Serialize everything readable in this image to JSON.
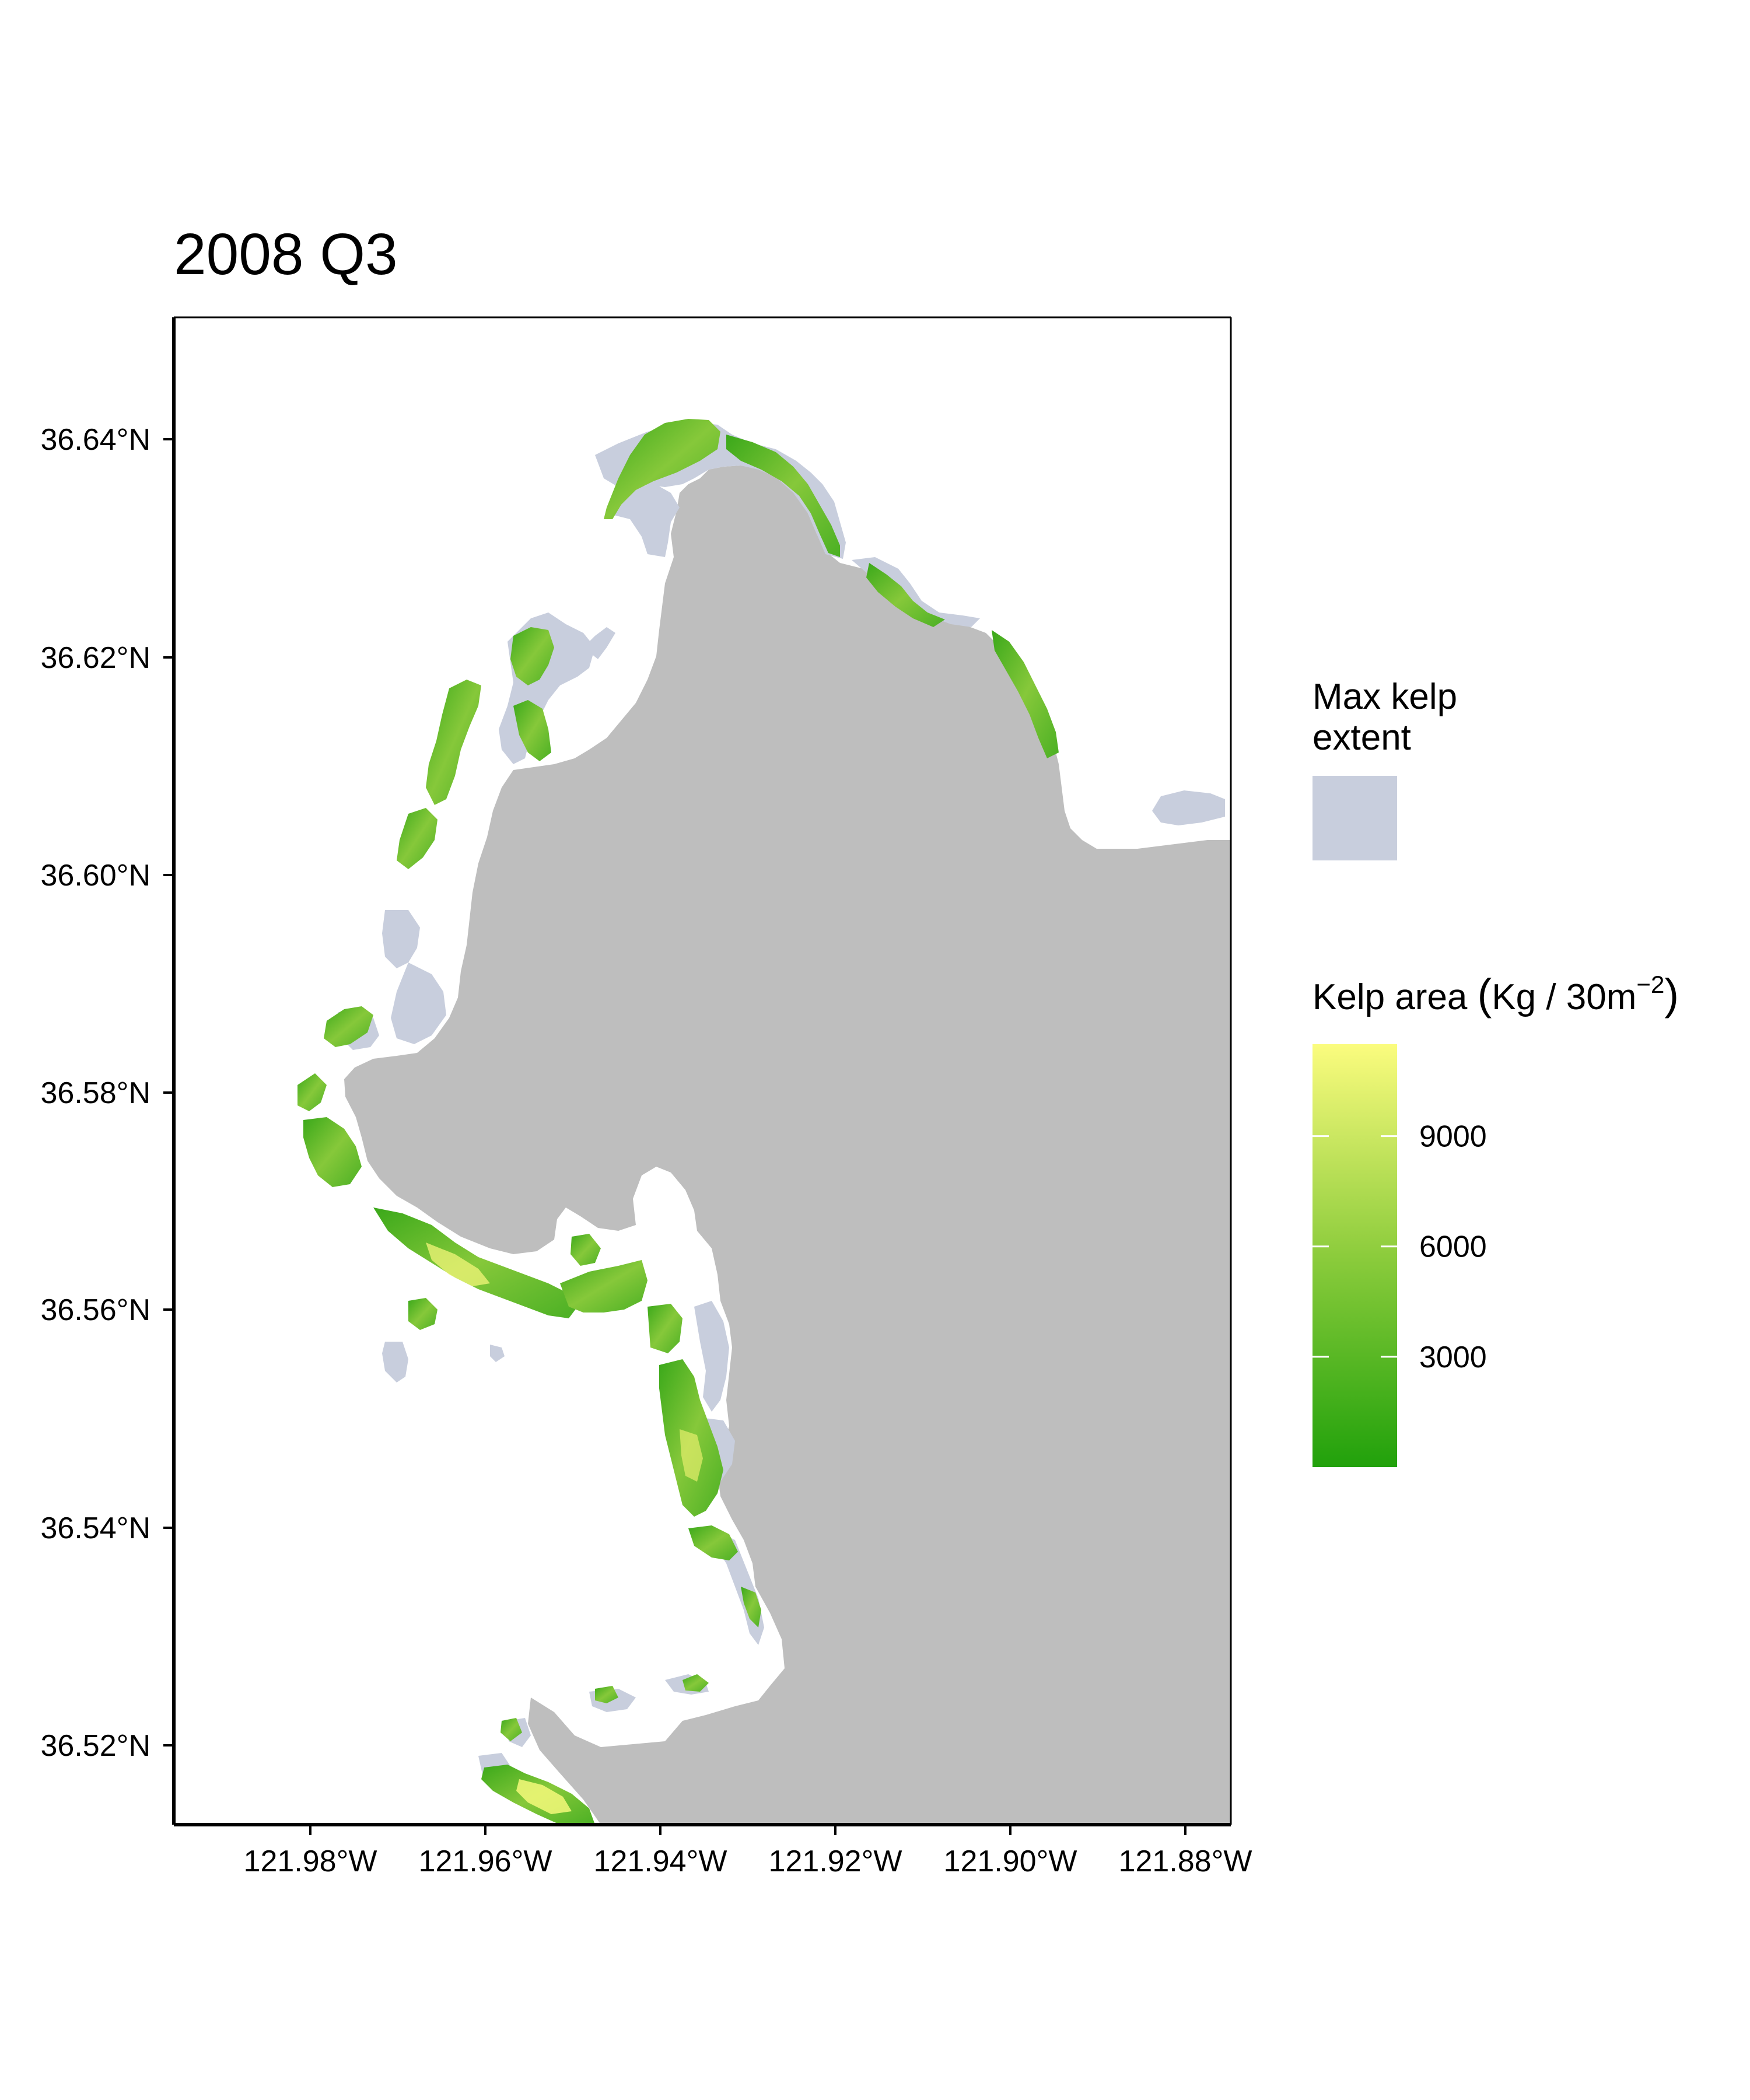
{
  "title": "2008 Q3",
  "map": {
    "x_ticks": [
      "121.98°W",
      "121.96°W",
      "121.94°W",
      "121.92°W",
      "121.90°W",
      "121.88°W"
    ],
    "y_ticks": [
      "36.64°N",
      "36.62°N",
      "36.60°N",
      "36.58°N",
      "36.56°N",
      "36.54°N",
      "36.52°N"
    ],
    "lon_range": [
      -121.995,
      -121.875
    ],
    "lat_range": [
      36.513,
      36.651
    ],
    "colors": {
      "land": "#bebebe",
      "water": "#ffffff",
      "max_extent": "#c8cedd",
      "kelp_low": "#21a10b",
      "kelp_mid": "#8ccc3c",
      "kelp_high": "#fbfc7e"
    }
  },
  "legend": {
    "extent_title_line1": "Max kelp",
    "extent_title_line2": "extent",
    "area_title_prefix": "Kelp area ",
    "area_title_paren_open": "(",
    "area_title_units": "Kg / 30m",
    "area_title_sup": "−2",
    "area_title_paren_close": ")",
    "area_ticks": [
      "9000",
      "6000",
      "3000"
    ],
    "area_tick_values": [
      9000,
      6000,
      3000
    ],
    "area_range": [
      0,
      11500
    ]
  }
}
